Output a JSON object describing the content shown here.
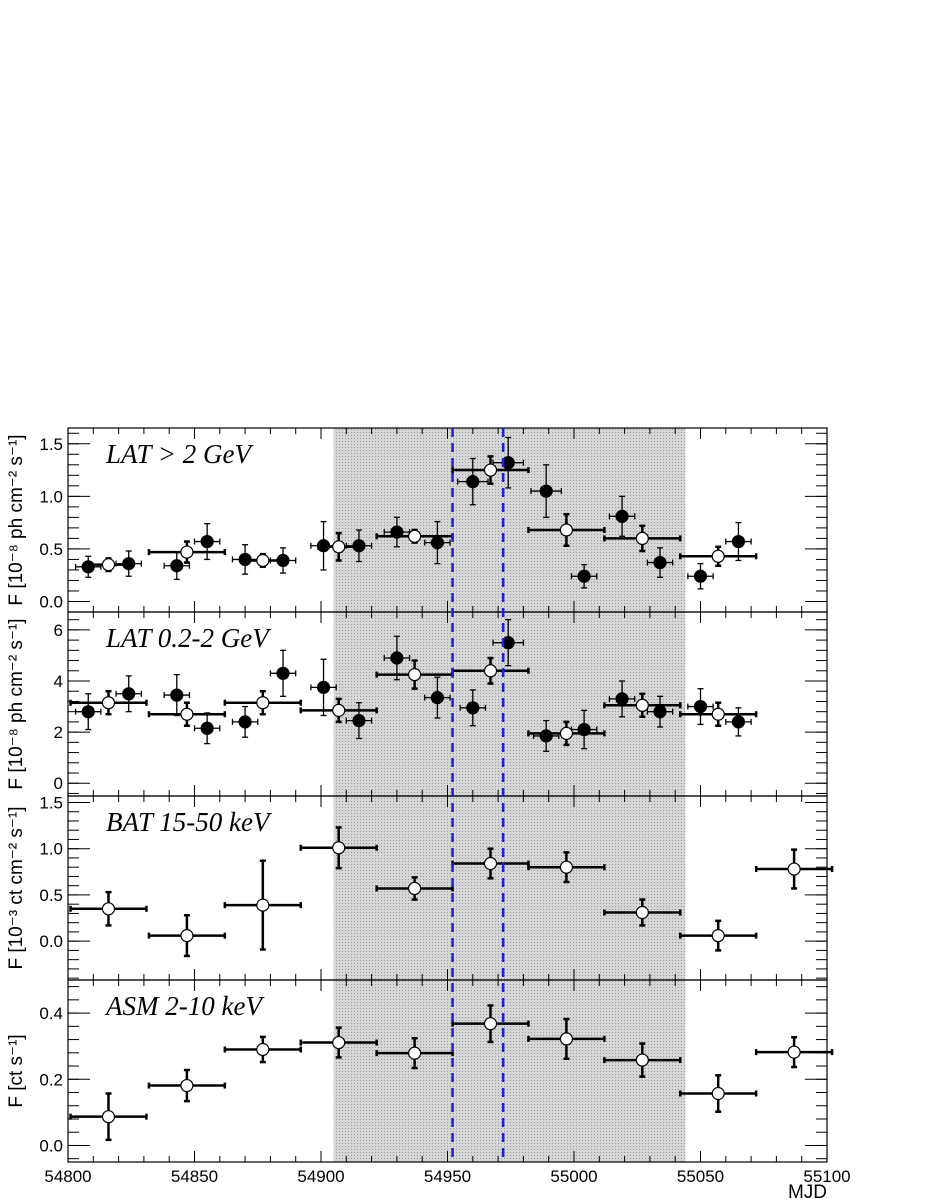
{
  "chart_data": {
    "type": "scatter",
    "x": {
      "label": "MJD",
      "range": [
        54800,
        55100
      ],
      "ticks": [
        "54800",
        "54850",
        "54900",
        "54950",
        "55000",
        "55050",
        "55100"
      ]
    },
    "shaded_band": [
      54905,
      55044
    ],
    "vertical_lines": [
      54952,
      54972
    ],
    "colors": {
      "band": "#d6d6d6",
      "vline": "#1f1fdc",
      "marker": "#000000",
      "open_fill": "#ffffff"
    },
    "panels": [
      {
        "title": "LAT > 2 GeV",
        "ylabel": "F [10⁻⁸ ph cm⁻² s⁻¹]",
        "ylim": [
          -0.1,
          1.65
        ],
        "yticks": [
          "0.0",
          "0.5",
          "1.0",
          "1.5"
        ],
        "series": [
          {
            "marker": "filled",
            "points": [
              {
                "x": 54808,
                "y": 0.33,
                "xerr": 5,
                "yerr": 0.1
              },
              {
                "x": 54824,
                "y": 0.36,
                "xerr": 5,
                "yerr": 0.12
              },
              {
                "x": 54843,
                "y": 0.34,
                "xerr": 5,
                "yerr": 0.13
              },
              {
                "x": 54855,
                "y": 0.57,
                "xerr": 5,
                "yerr": 0.17
              },
              {
                "x": 54870,
                "y": 0.4,
                "xerr": 5,
                "yerr": 0.14
              },
              {
                "x": 54885,
                "y": 0.39,
                "xerr": 5,
                "yerr": 0.12
              },
              {
                "x": 54901,
                "y": 0.53,
                "xerr": 5,
                "yerr": 0.23
              },
              {
                "x": 54915,
                "y": 0.53,
                "xerr": 5,
                "yerr": 0.15
              },
              {
                "x": 54930,
                "y": 0.66,
                "xerr": 5,
                "yerr": 0.14
              },
              {
                "x": 54946,
                "y": 0.56,
                "xerr": 5,
                "yerr": 0.2
              },
              {
                "x": 54960,
                "y": 1.14,
                "xerr": 6,
                "yerr": 0.22
              },
              {
                "x": 54974,
                "y": 1.32,
                "xerr": 6,
                "yerr": 0.24
              },
              {
                "x": 54989,
                "y": 1.05,
                "xerr": 6,
                "yerr": 0.25
              },
              {
                "x": 55004,
                "y": 0.24,
                "xerr": 5,
                "yerr": 0.11
              },
              {
                "x": 55019,
                "y": 0.81,
                "xerr": 5,
                "yerr": 0.19
              },
              {
                "x": 55034,
                "y": 0.37,
                "xerr": 5,
                "yerr": 0.14
              },
              {
                "x": 55050,
                "y": 0.24,
                "xerr": 5,
                "yerr": 0.12
              },
              {
                "x": 55065,
                "y": 0.57,
                "xerr": 5,
                "yerr": 0.18
              }
            ]
          },
          {
            "marker": "open",
            "points": [
              {
                "x": 54816,
                "y": 0.35,
                "xerr": 8,
                "yerr": 0.06
              },
              {
                "x": 54847,
                "y": 0.47,
                "xerr": 15,
                "yerr": 0.1
              },
              {
                "x": 54877,
                "y": 0.39,
                "xerr": 8,
                "yerr": 0.06
              },
              {
                "x": 54907,
                "y": 0.52,
                "xerr": 8,
                "yerr": 0.13
              },
              {
                "x": 54937,
                "y": 0.62,
                "xerr": 15,
                "yerr": 0.06
              },
              {
                "x": 54967,
                "y": 1.25,
                "xerr": 15,
                "yerr": 0.13
              },
              {
                "x": 54997,
                "y": 0.68,
                "xerr": 15,
                "yerr": 0.15
              },
              {
                "x": 55027,
                "y": 0.6,
                "xerr": 15,
                "yerr": 0.12
              },
              {
                "x": 55057,
                "y": 0.43,
                "xerr": 15,
                "yerr": 0.09
              }
            ]
          }
        ]
      },
      {
        "title": "LAT 0.2-2 GeV",
        "ylabel": "F [10⁻⁸ ph cm⁻² s⁻¹]",
        "ylim": [
          -0.5,
          6.7
        ],
        "yticks": [
          "0",
          "2",
          "4",
          "6"
        ],
        "series": [
          {
            "marker": "filled",
            "points": [
              {
                "x": 54808,
                "y": 2.8,
                "xerr": 5,
                "yerr": 0.7
              },
              {
                "x": 54824,
                "y": 3.5,
                "xerr": 5,
                "yerr": 0.7
              },
              {
                "x": 54843,
                "y": 3.45,
                "xerr": 5,
                "yerr": 0.8
              },
              {
                "x": 54855,
                "y": 2.15,
                "xerr": 5,
                "yerr": 0.6
              },
              {
                "x": 54870,
                "y": 2.4,
                "xerr": 5,
                "yerr": 0.6
              },
              {
                "x": 54885,
                "y": 4.3,
                "xerr": 5,
                "yerr": 0.9
              },
              {
                "x": 54901,
                "y": 3.75,
                "xerr": 5,
                "yerr": 1.1
              },
              {
                "x": 54915,
                "y": 2.45,
                "xerr": 5,
                "yerr": 0.7
              },
              {
                "x": 54930,
                "y": 4.9,
                "xerr": 5,
                "yerr": 0.85
              },
              {
                "x": 54946,
                "y": 3.35,
                "xerr": 5,
                "yerr": 0.8
              },
              {
                "x": 54960,
                "y": 2.95,
                "xerr": 5,
                "yerr": 0.7
              },
              {
                "x": 54974,
                "y": 5.5,
                "xerr": 6,
                "yerr": 0.9
              },
              {
                "x": 54989,
                "y": 1.85,
                "xerr": 5,
                "yerr": 0.6
              },
              {
                "x": 55004,
                "y": 2.1,
                "xerr": 5,
                "yerr": 0.75
              },
              {
                "x": 55019,
                "y": 3.3,
                "xerr": 5,
                "yerr": 0.7
              },
              {
                "x": 55034,
                "y": 2.8,
                "xerr": 5,
                "yerr": 0.6
              },
              {
                "x": 55050,
                "y": 3.0,
                "xerr": 5,
                "yerr": 0.7
              },
              {
                "x": 55065,
                "y": 2.4,
                "xerr": 5,
                "yerr": 0.55
              }
            ]
          },
          {
            "marker": "open",
            "points": [
              {
                "x": 54816,
                "y": 3.15,
                "xerr": 15,
                "yerr": 0.45
              },
              {
                "x": 54847,
                "y": 2.7,
                "xerr": 15,
                "yerr": 0.45
              },
              {
                "x": 54877,
                "y": 3.15,
                "xerr": 15,
                "yerr": 0.45
              },
              {
                "x": 54907,
                "y": 2.85,
                "xerr": 15,
                "yerr": 0.45
              },
              {
                "x": 54937,
                "y": 4.25,
                "xerr": 15,
                "yerr": 0.55
              },
              {
                "x": 54967,
                "y": 4.4,
                "xerr": 15,
                "yerr": 0.5
              },
              {
                "x": 54997,
                "y": 1.95,
                "xerr": 15,
                "yerr": 0.45
              },
              {
                "x": 55027,
                "y": 3.05,
                "xerr": 15,
                "yerr": 0.45
              },
              {
                "x": 55057,
                "y": 2.7,
                "xerr": 15,
                "yerr": 0.45
              }
            ]
          }
        ]
      },
      {
        "title": "BAT 15-50 keV",
        "ylabel": "F [10⁻³ ct cm⁻² s⁻¹]",
        "ylim": [
          -0.42,
          1.57
        ],
        "yticks": [
          "0.0",
          "0.5",
          "1.0",
          "1.5"
        ],
        "series": [
          {
            "marker": "open",
            "points": [
              {
                "x": 54816,
                "y": 0.35,
                "xerr": 15,
                "yerr": 0.18
              },
              {
                "x": 54847,
                "y": 0.06,
                "xerr": 15,
                "yerr": 0.22
              },
              {
                "x": 54877,
                "y": 0.39,
                "xerr": 15,
                "yerr": 0.48
              },
              {
                "x": 54907,
                "y": 1.01,
                "xerr": 15,
                "yerr": 0.22
              },
              {
                "x": 54937,
                "y": 0.57,
                "xerr": 15,
                "yerr": 0.12
              },
              {
                "x": 54967,
                "y": 0.84,
                "xerr": 15,
                "yerr": 0.16
              },
              {
                "x": 54997,
                "y": 0.8,
                "xerr": 15,
                "yerr": 0.16
              },
              {
                "x": 55027,
                "y": 0.31,
                "xerr": 15,
                "yerr": 0.14
              },
              {
                "x": 55057,
                "y": 0.06,
                "xerr": 15,
                "yerr": 0.16
              },
              {
                "x": 55087,
                "y": 0.78,
                "xerr": 15,
                "yerr": 0.21
              }
            ]
          }
        ]
      },
      {
        "title": "ASM 2-10 keV",
        "ylabel": "F [ct s⁻¹]",
        "ylim": [
          -0.05,
          0.5
        ],
        "yticks": [
          "0.0",
          "0.2",
          "0.4"
        ],
        "series": [
          {
            "marker": "open",
            "points": [
              {
                "x": 54816,
                "y": 0.087,
                "xerr": 15,
                "yerr": 0.07
              },
              {
                "x": 54847,
                "y": 0.181,
                "xerr": 15,
                "yerr": 0.047
              },
              {
                "x": 54877,
                "y": 0.29,
                "xerr": 15,
                "yerr": 0.038
              },
              {
                "x": 54907,
                "y": 0.311,
                "xerr": 15,
                "yerr": 0.045
              },
              {
                "x": 54937,
                "y": 0.279,
                "xerr": 15,
                "yerr": 0.045
              },
              {
                "x": 54967,
                "y": 0.368,
                "xerr": 15,
                "yerr": 0.055
              },
              {
                "x": 54997,
                "y": 0.322,
                "xerr": 15,
                "yerr": 0.06
              },
              {
                "x": 55027,
                "y": 0.258,
                "xerr": 15,
                "yerr": 0.05
              },
              {
                "x": 55057,
                "y": 0.157,
                "xerr": 15,
                "yerr": 0.055
              },
              {
                "x": 55087,
                "y": 0.282,
                "xerr": 15,
                "yerr": 0.045
              }
            ]
          }
        ]
      }
    ]
  }
}
